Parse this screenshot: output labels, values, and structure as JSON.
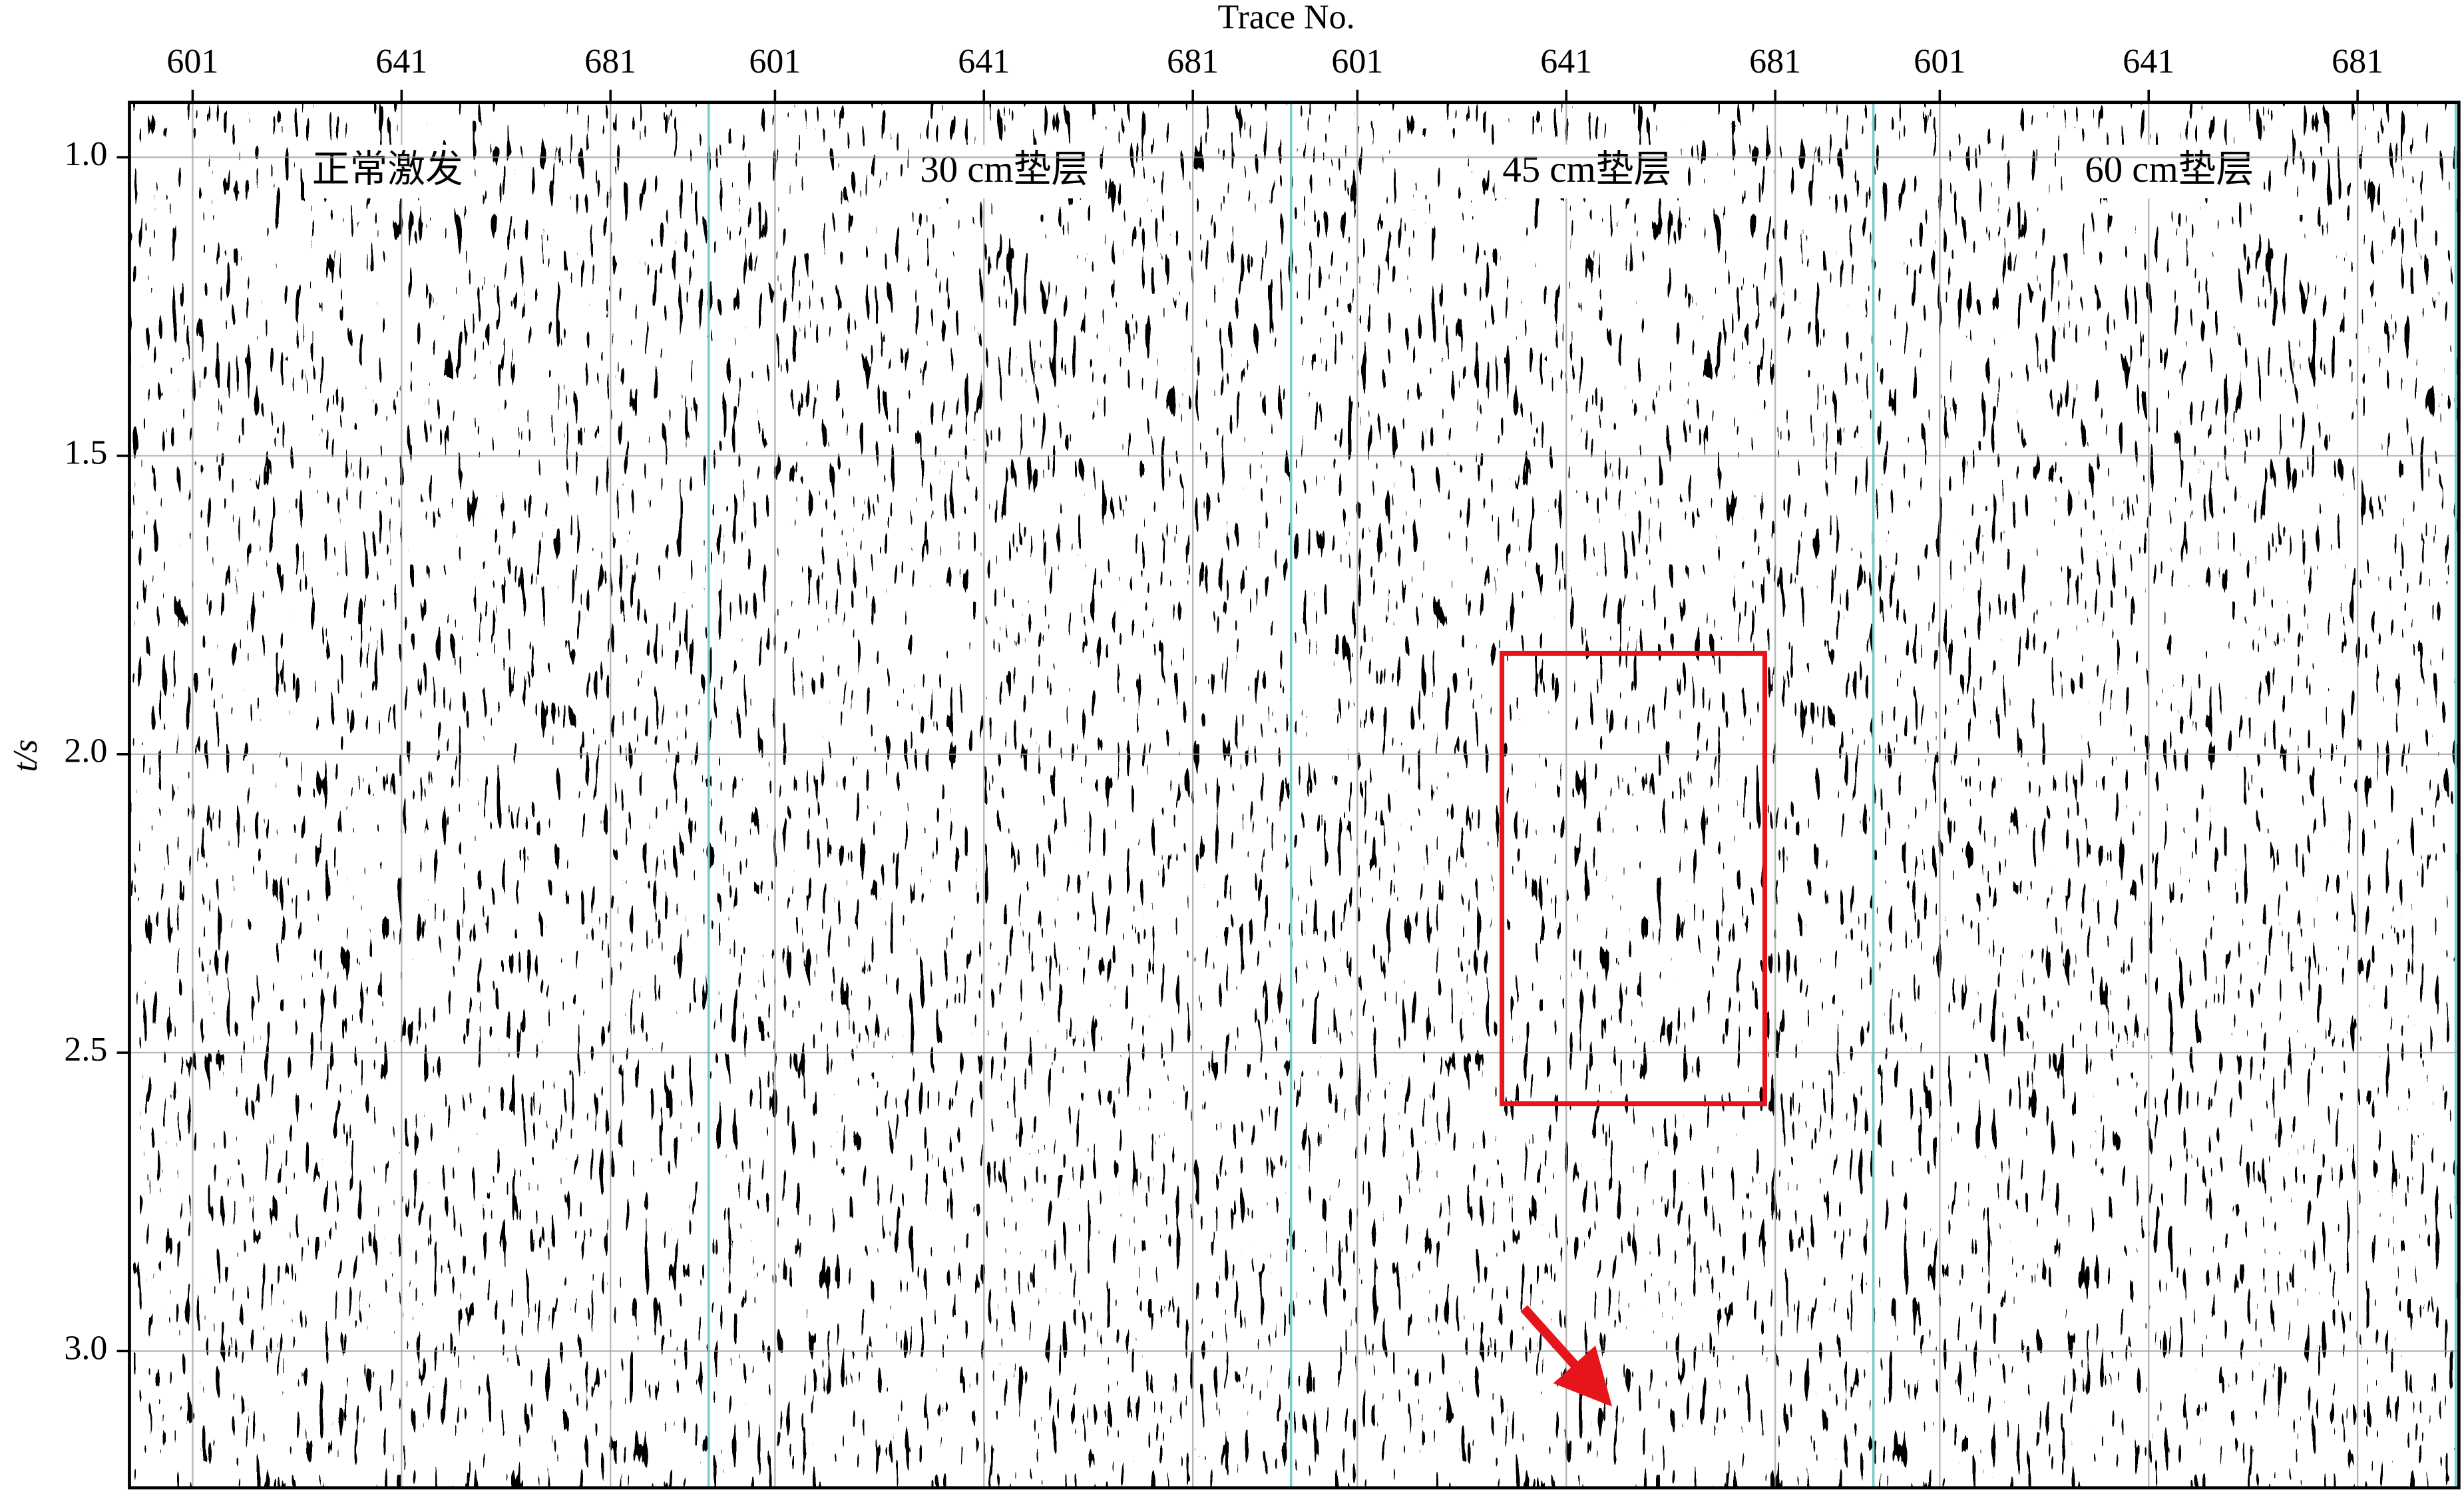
{
  "figure": {
    "x_label": "Trace No.",
    "y_label": "t/s",
    "ylim": [
      0.908,
      3.229
    ],
    "yticks": [
      {
        "value": 1,
        "label": "1.0"
      },
      {
        "value": 1.5,
        "label": "1.5"
      },
      {
        "value": 2,
        "label": "2.0"
      },
      {
        "value": 2.5,
        "label": "2.5"
      },
      {
        "value": 3,
        "label": "3.0"
      }
    ],
    "panels": [
      {
        "title": "正常激发",
        "xlim": [
          588.9,
          700.4
        ],
        "xticks": [
          601,
          641,
          681
        ]
      },
      {
        "title": "30 cm垫层",
        "xlim": [
          588.9,
          700.4
        ],
        "xticks": [
          601,
          641,
          681
        ]
      },
      {
        "title": "45 cm垫层",
        "xlim": [
          588.9,
          700.4
        ],
        "xticks": [
          601,
          641,
          681
        ]
      },
      {
        "title": "60 cm垫层",
        "xlim": [
          588.9,
          700.4
        ],
        "xticks": [
          601,
          641,
          681
        ]
      }
    ]
  }
}
